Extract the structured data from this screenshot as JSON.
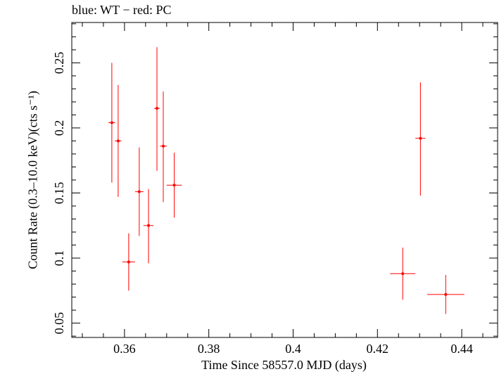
{
  "chart_data": {
    "type": "scatter",
    "title": "blue: WT − red: PC",
    "xlabel": "Time Since 58557.0 MJD (days)",
    "ylabel": "Count Rate (0.3–10.0 keV)(cts s⁻¹)",
    "xlim": [
      0.3475,
      0.4485
    ],
    "ylim": [
      0.039,
      0.281
    ],
    "x_ticks": [
      0.36,
      0.38,
      0.4,
      0.42,
      0.44
    ],
    "x_tick_labels": [
      "0.36",
      "0.38",
      "0.4",
      "0.42",
      "0.44"
    ],
    "y_ticks": [
      0.05,
      0.1,
      0.15,
      0.2,
      0.25
    ],
    "y_tick_labels": [
      "0.05",
      "0.1",
      "0.15",
      "0.2",
      "0.25"
    ],
    "grid": false,
    "series": [
      {
        "color": "#ff0000",
        "points": [
          {
            "x": 0.357,
            "y": 0.204,
            "xerr": 0.0008,
            "ylo": 0.158,
            "yhi": 0.25
          },
          {
            "x": 0.3585,
            "y": 0.19,
            "xerr": 0.0008,
            "ylo": 0.147,
            "yhi": 0.233
          },
          {
            "x": 0.361,
            "y": 0.097,
            "xerr": 0.0015,
            "ylo": 0.075,
            "yhi": 0.119
          },
          {
            "x": 0.3635,
            "y": 0.151,
            "xerr": 0.001,
            "ylo": 0.117,
            "yhi": 0.185
          },
          {
            "x": 0.3657,
            "y": 0.125,
            "xerr": 0.0012,
            "ylo": 0.096,
            "yhi": 0.153
          },
          {
            "x": 0.3677,
            "y": 0.215,
            "xerr": 0.0007,
            "ylo": 0.167,
            "yhi": 0.262
          },
          {
            "x": 0.3692,
            "y": 0.186,
            "xerr": 0.0008,
            "ylo": 0.143,
            "yhi": 0.228
          },
          {
            "x": 0.3718,
            "y": 0.156,
            "xerr": 0.0018,
            "ylo": 0.131,
            "yhi": 0.181
          },
          {
            "x": 0.426,
            "y": 0.088,
            "xerr": 0.003,
            "ylo": 0.068,
            "yhi": 0.108
          },
          {
            "x": 0.4302,
            "y": 0.192,
            "xerr": 0.0012,
            "ylo": 0.148,
            "yhi": 0.235
          },
          {
            "x": 0.4362,
            "y": 0.072,
            "xerr": 0.0044,
            "ylo": 0.057,
            "yhi": 0.087
          }
        ]
      }
    ]
  }
}
